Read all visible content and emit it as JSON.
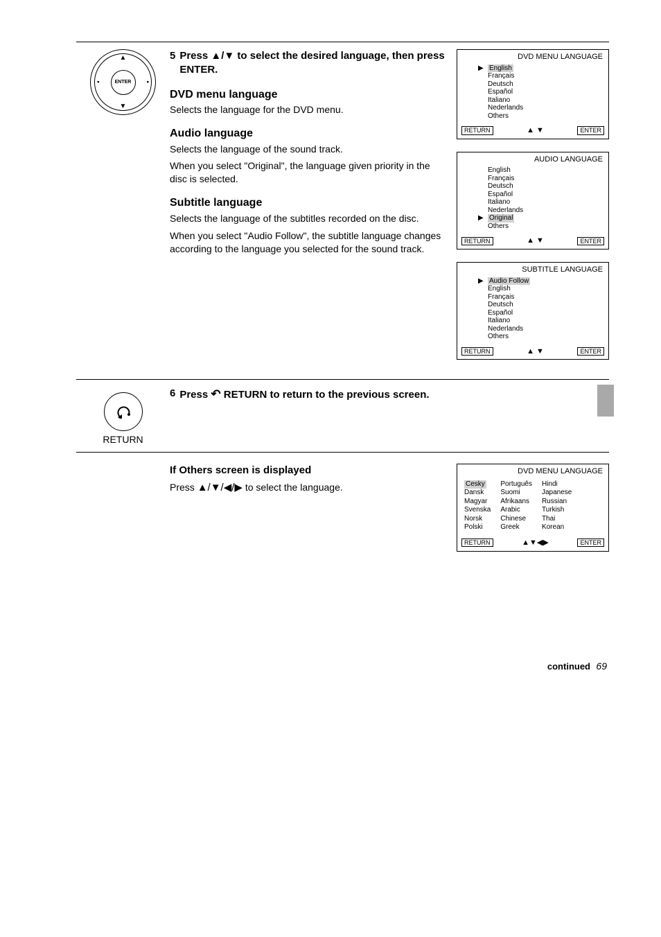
{
  "colors": {
    "highlight_bg": "#d0d0d0",
    "tab_bg": "#a9a9a9",
    "text": "#000000",
    "page_bg": "#ffffff",
    "border": "#000000"
  },
  "glyphs": {
    "up": "▲",
    "down": "▼",
    "left": "◀",
    "right": "▶",
    "updown": "▲/▼",
    "allarrows": "▲/▼/◀/▶",
    "return": "↶",
    "footer_ud": "▲ ▼",
    "footer_all": "▲▼◀▶"
  },
  "step5": {
    "number": "5",
    "head_before": "Press ",
    "head_after": " to select the desired language, then press ENTER.",
    "bullets": {
      "dvd": "Selects the language for the DVD menu.",
      "audio_line": "Selects the language of the sound track.",
      "audio_note": "When you select \"Original\", the language given priority in the disc is selected.",
      "sub_line": "Selects the language of the subtitles recorded on the disc.",
      "sub_note": "When you select \"Audio Follow\", the subtitle language changes according to the language you selected for the sound track."
    },
    "heads": {
      "dvd": "DVD menu language",
      "audio": "Audio language",
      "sub": "Subtitle language"
    },
    "remote_enter": "ENTER"
  },
  "step6": {
    "number": "6",
    "head_before": "Press ",
    "head_mid": " RETURN to return to the previous screen.",
    "return_label": "RETURN"
  },
  "others": {
    "title": "If Others screen is displayed",
    "before": "Press ",
    "after": " to select the language.",
    "head": "DVD MENU LANGUAGE",
    "col1": [
      "Cesky",
      "Dansk",
      "Magyar",
      "Svenska",
      "Norsk",
      "Polski"
    ],
    "col2": [
      "Português",
      "Suomi",
      "Afrikaans",
      "Arabic",
      "Chinese",
      "Greek"
    ],
    "col3": [
      "Hindi",
      "Japanese",
      "Russian",
      "Turkish",
      "Thai",
      "Korean"
    ],
    "selected": "Cesky"
  },
  "screens": {
    "dvd": {
      "title": "DVD MENU LANGUAGE",
      "items": [
        "English",
        "Français",
        "Deutsch",
        "Español",
        "Italiano",
        "Nederlands",
        "Others"
      ],
      "selected_index": 0
    },
    "audio": {
      "title": "AUDIO LANGUAGE",
      "items": [
        "English",
        "Français",
        "Deutsch",
        "Español",
        "Italiano",
        "Nederlands",
        "Original",
        "Others"
      ],
      "selected_index": 6
    },
    "sub": {
      "title": "SUBTITLE LANGUAGE",
      "items": [
        "Audio Follow",
        "English",
        "Français",
        "Deutsch",
        "Español",
        "Italiano",
        "Nederlands",
        "Others"
      ],
      "selected_index": 0
    },
    "return_label": "RETURN",
    "enter_label": "ENTER"
  },
  "footer": {
    "continued": "continued",
    "page": "69"
  }
}
